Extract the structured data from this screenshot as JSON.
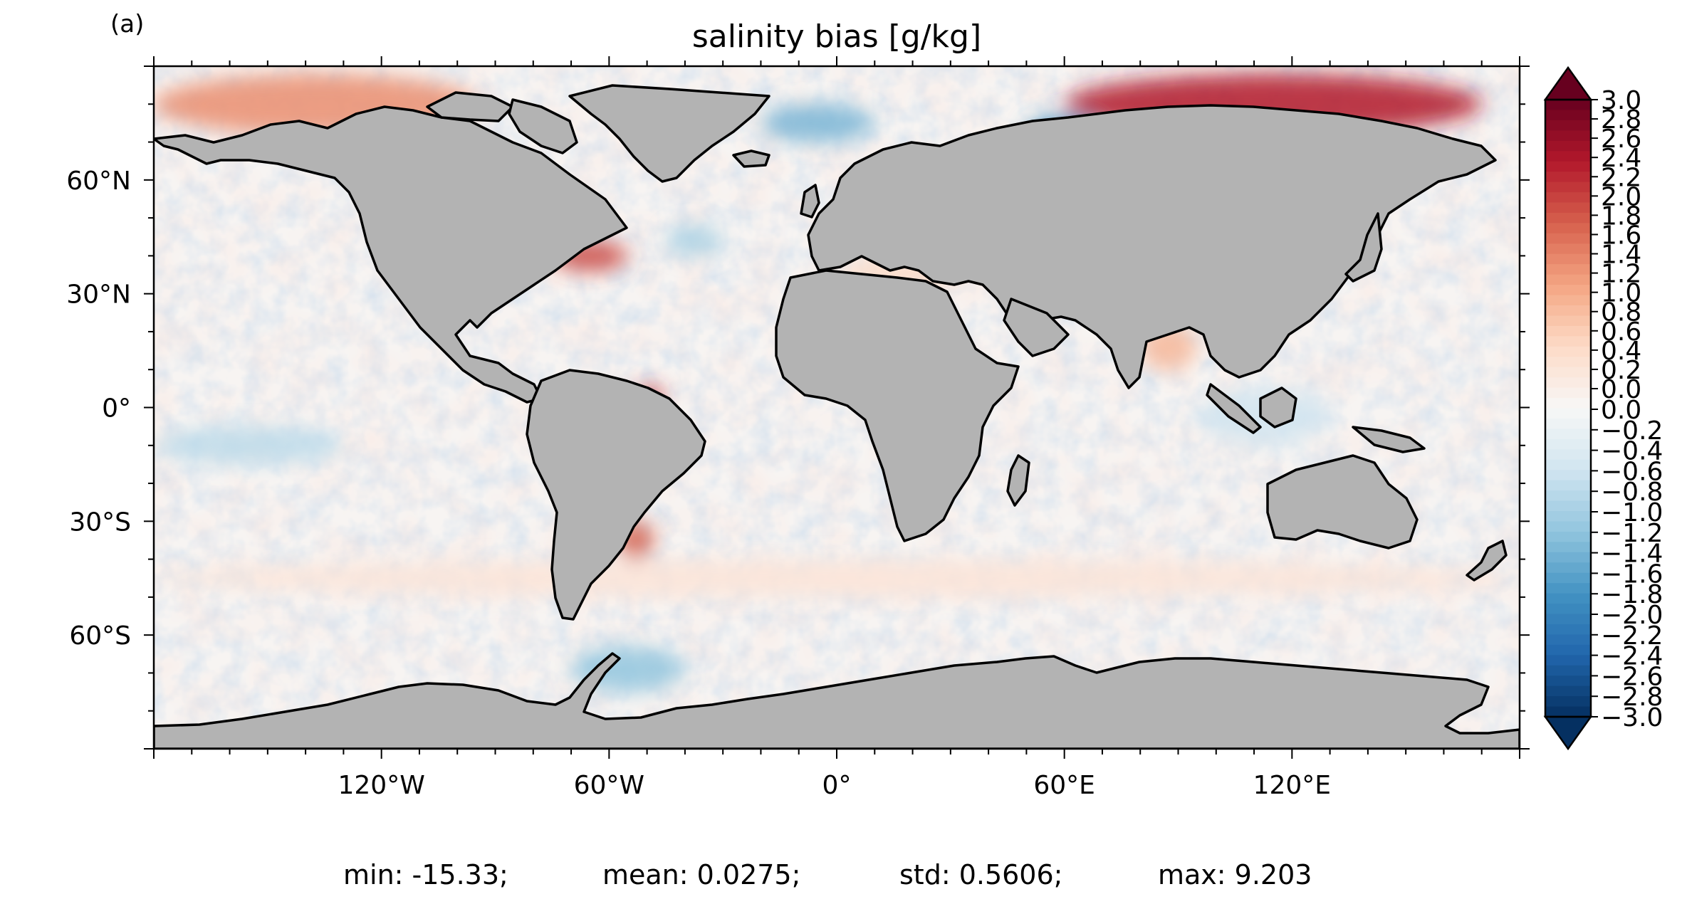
{
  "figure": {
    "panel_label": "(a)",
    "title": "salinity bias [g/kg]"
  },
  "map": {
    "projection": "plate-carree",
    "land_color": "#b3b3b3",
    "coastline_color": "#000000",
    "lon_range": [
      -180,
      180
    ],
    "lat_range": [
      -90,
      90
    ],
    "x_ticks": [
      "120°W",
      "60°W",
      "0°",
      "60°E",
      "120°E"
    ],
    "y_ticks": [
      "60°N",
      "30°N",
      "0°",
      "30°S",
      "60°S"
    ],
    "regions": [
      {
        "name": "arctic-pacific-sector",
        "lon": [
          -180,
          -95
        ],
        "lat": [
          72,
          88
        ],
        "bias": 1.4
      },
      {
        "name": "siberian-shelf",
        "lon": [
          60,
          170
        ],
        "lat": [
          72,
          88
        ],
        "bias": 2.4
      },
      {
        "name": "barents-kara-fresh",
        "lon": [
          50,
          70
        ],
        "lat": [
          68,
          77
        ],
        "bias": -1.8
      },
      {
        "name": "greenland-sea-fresh",
        "lon": [
          -20,
          10
        ],
        "lat": [
          70,
          80
        ],
        "bias": -1.4
      },
      {
        "name": "gulf-stream",
        "lon": [
          -75,
          -55
        ],
        "lat": [
          36,
          44
        ],
        "bias": 2.0
      },
      {
        "name": "north-atlantic-fresh",
        "lon": [
          -45,
          -30
        ],
        "lat": [
          40,
          48
        ],
        "bias": -1.0
      },
      {
        "name": "amazon-plume",
        "lon": [
          -52,
          -46
        ],
        "lat": [
          -1,
          6
        ],
        "bias": 2.2
      },
      {
        "name": "rio-de-la-plata",
        "lon": [
          -58,
          -48
        ],
        "lat": [
          -40,
          -30
        ],
        "bias": 1.8
      },
      {
        "name": "bay-of-bengal",
        "lon": [
          80,
          95
        ],
        "lat": [
          10,
          22
        ],
        "bias": 1.0
      },
      {
        "name": "east-pacific-fresh",
        "lon": [
          -180,
          -130
        ],
        "lat": [
          -15,
          -5
        ],
        "bias": -0.8
      },
      {
        "name": "maritime-continent-fresh",
        "lon": [
          95,
          130
        ],
        "lat": [
          -10,
          5
        ],
        "bias": -0.6
      },
      {
        "name": "mediterranean",
        "lon": [
          0,
          35
        ],
        "lat": [
          31,
          40
        ],
        "bias": 0.6
      },
      {
        "name": "southern-ocean-belt",
        "lon": [
          -180,
          180
        ],
        "lat": [
          -50,
          -40
        ],
        "bias": 0.4
      },
      {
        "name": "ross-weddell-fresh",
        "lon": [
          -70,
          -40
        ],
        "lat": [
          -75,
          -63
        ],
        "bias": -1.2
      }
    ]
  },
  "colorbar": {
    "colormap": "RdBu_r",
    "min": -3.0,
    "max": 3.0,
    "extend": "both",
    "high_color": "#67001f",
    "low_color": "#053061",
    "tick_labels": [
      "3.0",
      "2.8",
      "2.6",
      "2.4",
      "2.2",
      "2.0",
      "1.8",
      "1.6",
      "1.4",
      "1.2",
      "1.0",
      "0.8",
      "0.6",
      "0.4",
      "0.2",
      "0.0",
      "0.0",
      "−0.2",
      "−0.4",
      "−0.6",
      "−0.8",
      "−1.0",
      "−1.2",
      "−1.4",
      "−1.6",
      "−1.8",
      "−2.0",
      "−2.2",
      "−2.4",
      "−2.6",
      "−2.8",
      "−3.0"
    ]
  },
  "stats": {
    "min": "min: -15.33;",
    "mean": "mean: 0.0275;",
    "std": "std: 0.5606;",
    "max": "max: 9.203"
  }
}
